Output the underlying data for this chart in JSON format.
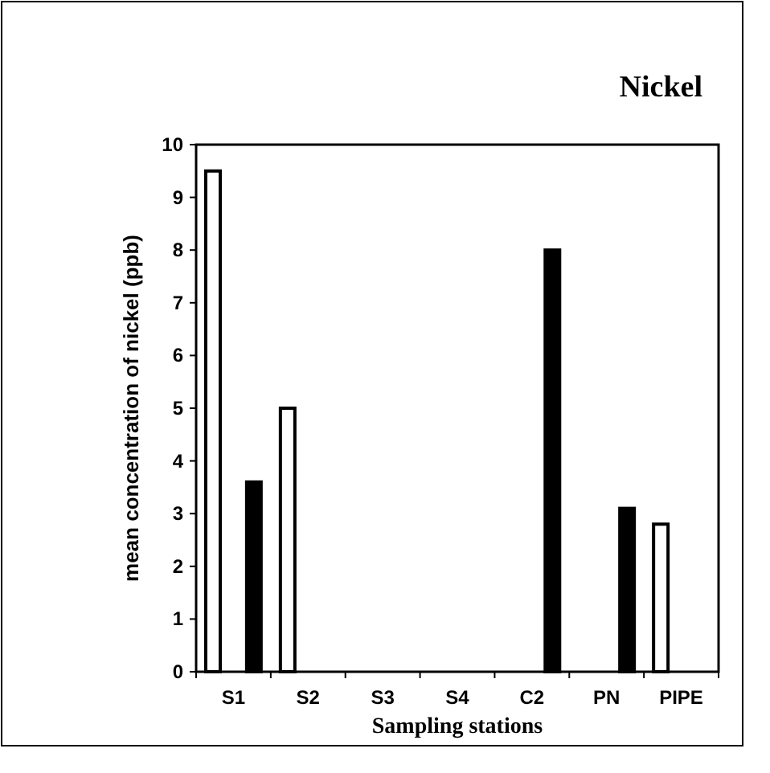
{
  "chart_data": {
    "type": "bar",
    "title": "Nickel",
    "xlabel": "Sampling stations",
    "ylabel": "mean concentration of nickel (ppb)",
    "categories": [
      "S1",
      "S2",
      "S3",
      "S4",
      "C2",
      "PN",
      "PIPE"
    ],
    "series": [
      {
        "color": "#ffffff",
        "values": [
          9.5,
          5,
          null,
          null,
          null,
          null,
          2.8
        ]
      },
      {
        "color": "#000000",
        "values": [
          3.6,
          null,
          null,
          null,
          8,
          3.1,
          null
        ]
      }
    ],
    "ylim": [
      0,
      10
    ],
    "yticks": [
      0,
      1,
      2,
      3,
      4,
      5,
      6,
      7,
      8,
      9,
      10
    ],
    "grid": false
  }
}
